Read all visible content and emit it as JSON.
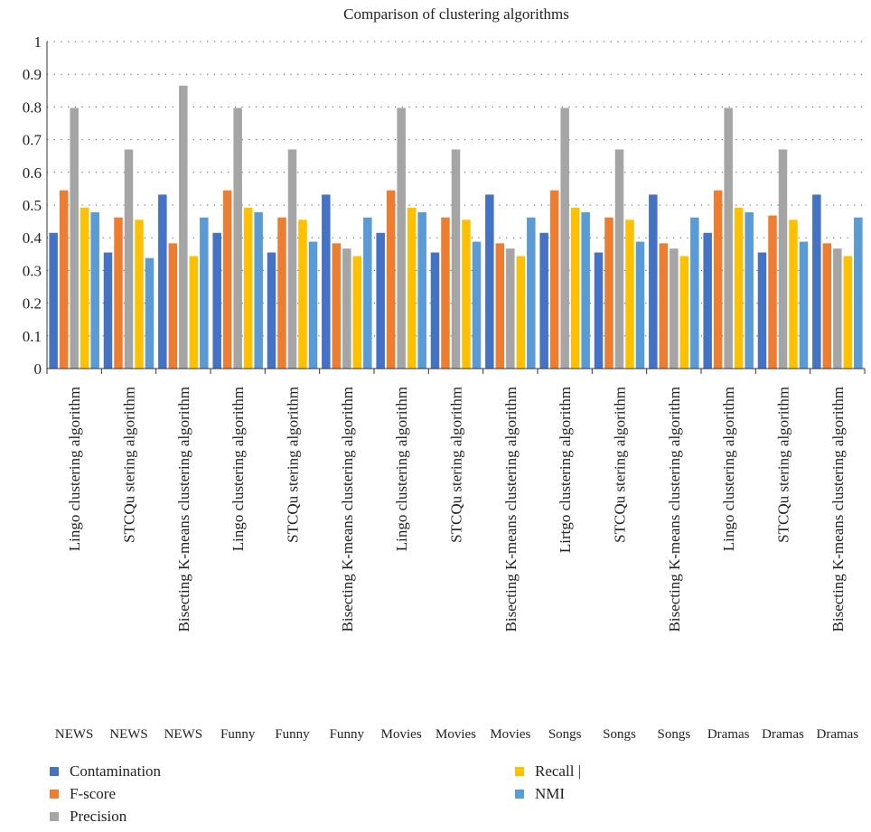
{
  "chart_data": {
    "type": "bar",
    "title": "Comparison of clustering algorithms",
    "xlabel": "",
    "ylabel": "",
    "ylim": [
      0,
      1
    ],
    "yticks": [
      "0",
      "0.1",
      "0.2",
      "0.3",
      "0.4",
      "0.5",
      "0.6",
      "0.7",
      "0.8",
      "0.9",
      "1"
    ],
    "grid": true,
    "legend_position": "bottom-left",
    "categories": [
      "Lingo clustering algorithm",
      "STCQu stering algorithm",
      "Bisecting K-means clustering algorithm",
      "Lingo clustering algorithm",
      "STCQu stering algorithm",
      "Bisecting K-means clustering algorithm",
      "Lingo clustering algorithm",
      "STCQu stering algorithm",
      "Bisecting K-means clustering algorithm",
      "Lirtgo clustering algorithm",
      "STCQu stering algorithm",
      "Bisecting K-means clustering algorithm",
      "Lingo clustering algorithm",
      "STCQu stering algorithm",
      "Bisecting K-means clustering algorithm"
    ],
    "groups": [
      "NEWS",
      "NEWS",
      "NEWS",
      "Funny",
      "Funny",
      "Funny",
      "Movies",
      "Movies",
      "Movies",
      "Songs",
      "Songs",
      "Songs",
      "Dramas",
      "Dramas",
      "Dramas"
    ],
    "series": [
      {
        "name": "Contamination",
        "color": "#4472c4",
        "values": [
          0.415,
          0.355,
          0.532,
          0.415,
          0.355,
          0.532,
          0.415,
          0.355,
          0.532,
          0.415,
          0.355,
          0.532,
          0.415,
          0.355,
          0.532
        ]
      },
      {
        "name": "F-score",
        "color": "#ed7d31",
        "values": [
          0.545,
          0.462,
          0.383,
          0.545,
          0.462,
          0.383,
          0.545,
          0.462,
          0.383,
          0.545,
          0.462,
          0.383,
          0.545,
          0.468,
          0.383
        ]
      },
      {
        "name": "Precision",
        "color": "#a5a5a5",
        "values": [
          0.797,
          0.67,
          0.865,
          0.797,
          0.67,
          0.367,
          0.797,
          0.67,
          0.367,
          0.797,
          0.67,
          0.367,
          0.797,
          0.67,
          0.367
        ]
      },
      {
        "name": "Recall |",
        "color": "#ffc000",
        "values": [
          0.492,
          0.455,
          0.344,
          0.492,
          0.455,
          0.344,
          0.492,
          0.455,
          0.344,
          0.492,
          0.455,
          0.344,
          0.492,
          0.455,
          0.344
        ]
      },
      {
        "name": "NMI",
        "color": "#5b9bd5",
        "values": [
          0.478,
          0.338,
          0.462,
          0.478,
          0.388,
          0.462,
          0.478,
          0.388,
          0.462,
          0.478,
          0.388,
          0.462,
          0.478,
          0.388,
          0.462
        ]
      }
    ]
  }
}
